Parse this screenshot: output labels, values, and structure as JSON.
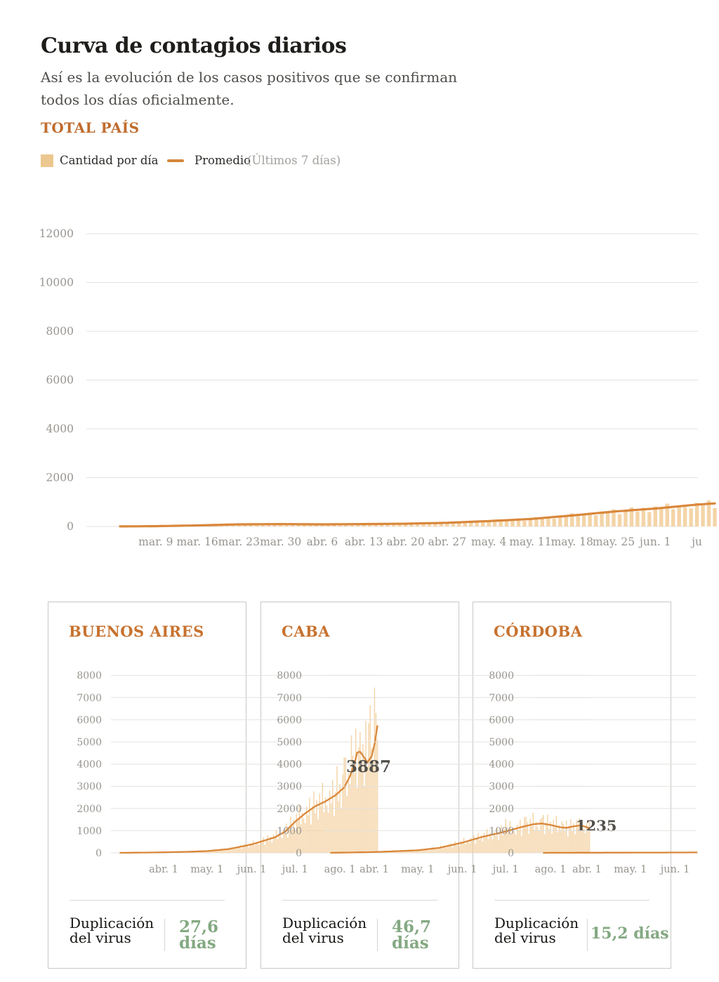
{
  "header": {
    "title": "Curva de contagios diarios",
    "subtitle": "Así es la evolución de los casos positivos que se confirman todos los días oficialmente."
  },
  "section": {
    "label": "TOTAL PAÍS"
  },
  "legend": {
    "bars_label": "Cantidad por día",
    "line_label": "Promedio",
    "line_note": "(Últimos 7 días)"
  },
  "colors": {
    "accent_orange": "#bf6c2e",
    "panel_title_orange": "#c7722f",
    "bar_fill": "#f3cf9d",
    "avg_line": "#d9873b",
    "grid": "#e4e2df",
    "axis_text": "#98958f",
    "annotation_text": "#524f4a",
    "green_value": "#84a982",
    "panel_border": "#c9c8c6",
    "title_text": "#1f1d1a",
    "subtitle_text": "#514f4c"
  },
  "panels": [
    {
      "title": "BUENOS AIRES",
      "dup_label_line1": "Duplicación",
      "dup_label_line2": "del virus",
      "value_line1": "27,6",
      "value_line2": "días"
    },
    {
      "title": "CABA",
      "dup_label_line1": "Duplicación",
      "dup_label_line2": "del virus",
      "value_line1": "46,7",
      "value_line2": "días"
    },
    {
      "title": "CÓRDOBA",
      "dup_label_line1": "Duplicación",
      "dup_label_line2": "del virus",
      "value_line1": "15,2 días",
      "value_line2": ""
    }
  ],
  "chart_data": [
    {
      "id": "total-pais",
      "name": "TOTAL PAÍS",
      "type": "bar+line",
      "ylim": [
        0,
        12000
      ],
      "y_ticks": [
        0,
        2000,
        4000,
        6000,
        8000,
        10000,
        12000
      ],
      "x_tick_labels": [
        "mar. 9",
        "mar. 16",
        "mar. 23",
        "mar. 30",
        "abr. 6",
        "abr. 13",
        "abr. 20",
        "abr. 27",
        "may. 4",
        "may. 11",
        "may. 18",
        "may. 25",
        "jun. 1",
        "ju"
      ],
      "x_tick_days": [
        6,
        13,
        20,
        27,
        34,
        41,
        48,
        55,
        62,
        69,
        76,
        83,
        90,
        97
      ],
      "days": 100,
      "avg_points": [
        [
          0,
          2
        ],
        [
          6,
          12
        ],
        [
          13,
          42
        ],
        [
          20,
          86
        ],
        [
          27,
          98
        ],
        [
          31,
          90
        ],
        [
          34,
          86
        ],
        [
          41,
          97
        ],
        [
          48,
          113
        ],
        [
          55,
          150
        ],
        [
          62,
          220
        ],
        [
          69,
          305
        ],
        [
          76,
          450
        ],
        [
          83,
          610
        ],
        [
          90,
          735
        ],
        [
          97,
          895
        ],
        [
          100,
          945
        ]
      ],
      "bar_noise": [
        0.85,
        1.08,
        0.95,
        1.15,
        0.8,
        1.02,
        1.18,
        0.9,
        1.1,
        0.82,
        1.12,
        0.97,
        1.2,
        0.88,
        1.05,
        0.93
      ],
      "bar_overrides": {},
      "annotation": null
    },
    {
      "id": "buenos-aires",
      "name": "BUENOS AIRES",
      "type": "bar+line",
      "ylim": [
        0,
        8000
      ],
      "y_ticks": [
        0,
        1000,
        2000,
        3000,
        4000,
        5000,
        6000,
        7000,
        8000
      ],
      "x_tick_labels": [
        "abr. 1",
        "may. 1",
        "jun. 1",
        "jul. 1",
        "ago. 1"
      ],
      "x_tick_days": [
        30,
        60,
        91,
        121,
        152
      ],
      "days": 178,
      "avg_points": [
        [
          0,
          2
        ],
        [
          20,
          15
        ],
        [
          30,
          25
        ],
        [
          45,
          45
        ],
        [
          60,
          80
        ],
        [
          75,
          170
        ],
        [
          91,
          380
        ],
        [
          100,
          560
        ],
        [
          107,
          700
        ],
        [
          114,
          950
        ],
        [
          121,
          1400
        ],
        [
          128,
          1780
        ],
        [
          135,
          2100
        ],
        [
          142,
          2320
        ],
        [
          149,
          2600
        ],
        [
          155,
          2950
        ],
        [
          159,
          3450
        ],
        [
          162,
          4000
        ],
        [
          164,
          4520
        ],
        [
          166,
          4560
        ],
        [
          168,
          4380
        ],
        [
          171,
          4080
        ],
        [
          174,
          4350
        ],
        [
          176,
          4900
        ],
        [
          178,
          5720
        ]
      ],
      "bar_noise": [
        0.75,
        1.15,
        0.9,
        1.3,
        0.65,
        1.05,
        1.35,
        0.85,
        1.12,
        0.7,
        1.22,
        0.95,
        1.4,
        0.8,
        1.08,
        0.9
      ],
      "bar_overrides": {
        "150": 3900,
        "155": 4300,
        "160": 5300,
        "163": 5600,
        "166": 5450,
        "170": 5950,
        "173": 6650,
        "176": 7450,
        "177": 6300,
        "178": 5100
      },
      "annotation": "3887"
    },
    {
      "id": "caba",
      "name": "CABA",
      "type": "bar+line",
      "ylim": [
        0,
        8000
      ],
      "y_ticks": [
        0,
        1000,
        2000,
        3000,
        4000,
        5000,
        6000,
        7000,
        8000
      ],
      "x_tick_labels": [
        "abr. 1",
        "may. 1",
        "jun. 1",
        "jul. 1",
        "ago. 1"
      ],
      "x_tick_days": [
        30,
        60,
        91,
        121,
        152
      ],
      "days": 179,
      "avg_points": [
        [
          0,
          2
        ],
        [
          30,
          35
        ],
        [
          60,
          115
        ],
        [
          75,
          225
        ],
        [
          91,
          460
        ],
        [
          105,
          725
        ],
        [
          113,
          840
        ],
        [
          121,
          965
        ],
        [
          130,
          1130
        ],
        [
          140,
          1290
        ],
        [
          146,
          1325
        ],
        [
          153,
          1245
        ],
        [
          158,
          1160
        ],
        [
          163,
          1125
        ],
        [
          166,
          1170
        ],
        [
          172,
          1235
        ],
        [
          176,
          1180
        ],
        [
          179,
          1115
        ]
      ],
      "bar_noise": [
        0.75,
        1.15,
        0.9,
        1.3,
        0.65,
        1.05,
        1.35,
        0.85,
        1.12,
        0.7,
        1.22,
        0.95,
        1.4,
        0.8,
        1.08,
        0.9
      ],
      "bar_overrides": {
        "121": 1530,
        "135": 1620,
        "146": 1600,
        "160": 1420,
        "166": 1520,
        "172": 1560
      },
      "annotation": "1235"
    },
    {
      "id": "cordoba",
      "name": "CÓRDOBA",
      "type": "bar+line",
      "ylim": [
        0,
        8000
      ],
      "y_ticks": [
        0,
        1000,
        2000,
        3000,
        4000,
        5000,
        6000,
        7000,
        8000
      ],
      "x_tick_labels": [
        "abr. 1",
        "may. 1",
        "jun. 1"
      ],
      "x_tick_days": [
        30,
        60,
        91
      ],
      "days": 106,
      "avg_points": [
        [
          0,
          1
        ],
        [
          30,
          6
        ],
        [
          60,
          11
        ],
        [
          91,
          15
        ],
        [
          106,
          19
        ]
      ],
      "bar_noise": [
        1
      ],
      "bar_overrides": {},
      "annotation": null
    }
  ]
}
